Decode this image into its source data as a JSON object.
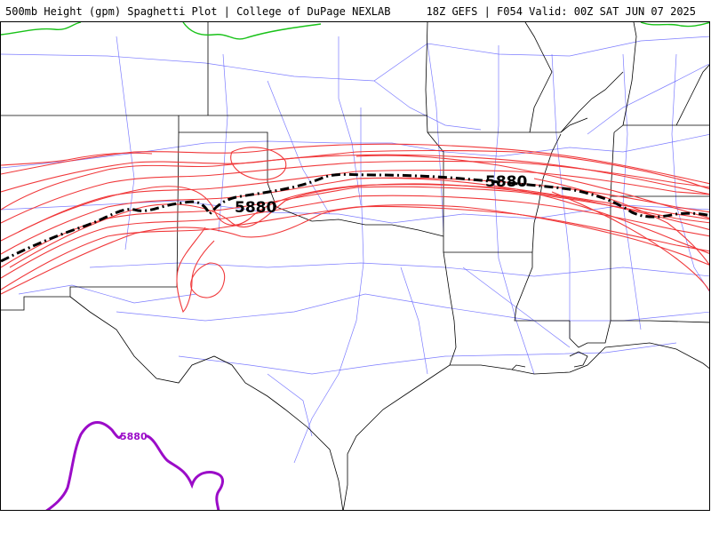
{
  "header": {
    "title": "500mb Height (gpm) Spaghetti Plot | College of DuPage NEXLAB",
    "run_info": "18Z GEFS | F054 Valid: 00Z SAT JUN 07 2025"
  },
  "contours": {
    "mean_label_west": "5880",
    "mean_label_east": "5880",
    "purple_label": "5880"
  },
  "colors": {
    "members": "#f0383a",
    "mean": "#000000",
    "green_contour": "#19c219",
    "purple_contour": "#9b0cc8",
    "highways": "#5b5bff"
  }
}
